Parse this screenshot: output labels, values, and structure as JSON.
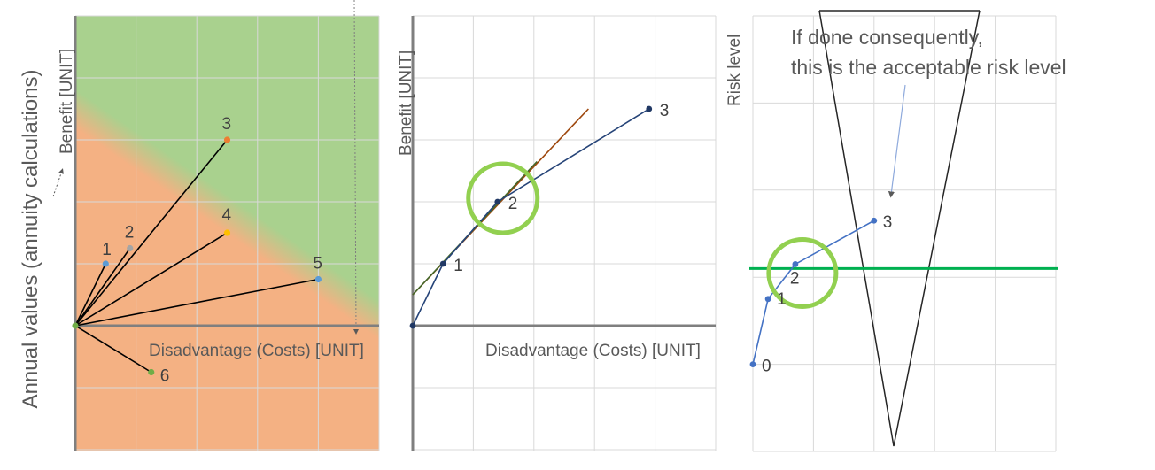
{
  "figure": {
    "side_label": "Annual values (annuity calculations)"
  },
  "chart_data": [
    {
      "type": "scatter",
      "panel": "left",
      "xlabel": "Disadvantage (Costs) [UNIT]",
      "ylabel": "Benefit [UNIT]",
      "xlim": [
        0,
        10
      ],
      "ylim": [
        -4,
        10
      ],
      "grid": true,
      "background": "diagonal gradient: green above the diagonal, orange below",
      "colors": {
        "good_region": "#a9d18e",
        "bad_region": "#f4b183",
        "line": "#000000"
      },
      "points": [
        {
          "label": "1",
          "x": 1.0,
          "y": 2.0,
          "color": "#5b9bd5"
        },
        {
          "label": "2",
          "x": 1.8,
          "y": 2.5,
          "color": "#a5a5a5"
        },
        {
          "label": "3",
          "x": 5.0,
          "y": 6.0,
          "color": "#ed7d31"
        },
        {
          "label": "4",
          "x": 5.0,
          "y": 3.0,
          "color": "#ffc000"
        },
        {
          "label": "5",
          "x": 8.0,
          "y": 1.5,
          "color": "#5b9bd5"
        },
        {
          "label": "6",
          "x": 2.5,
          "y": -1.5,
          "color": "#70ad47"
        }
      ],
      "origin": {
        "x": 0,
        "y": 0,
        "color": "#70ad47"
      }
    },
    {
      "type": "line",
      "panel": "middle",
      "xlabel": "Disadvantage (Costs) [UNIT]",
      "ylabel": "Benefit [UNIT]",
      "xlim": [
        0,
        10
      ],
      "ylim": [
        -4,
        10
      ],
      "grid": true,
      "colors": {
        "series": "#264478",
        "tangent_brown": "#9e480e",
        "tangent_green": "#43682b",
        "circle": "#92d050"
      },
      "points": [
        {
          "label": "",
          "x": 0.0,
          "y": 0.0
        },
        {
          "label": "1",
          "x": 1.0,
          "y": 2.0
        },
        {
          "label": "2",
          "x": 2.8,
          "y": 4.0
        },
        {
          "label": "3",
          "x": 7.8,
          "y": 7.0
        }
      ],
      "tangent_lines": [
        {
          "x": [
            0.0,
            5.8
          ],
          "y": [
            1.0,
            7.0
          ],
          "color": "#9e480e"
        },
        {
          "x": [
            0.0,
            4.1
          ],
          "y": [
            1.0,
            5.3
          ],
          "color": "#43682b"
        }
      ],
      "highlight": {
        "label": "2",
        "x": 2.8,
        "y": 4.0
      }
    },
    {
      "type": "line",
      "panel": "right",
      "xlabel": "",
      "ylabel": "Risk level",
      "xlim": [
        0,
        10
      ],
      "ylim": [
        0,
        10
      ],
      "grid": true,
      "colors": {
        "series": "#4472c4",
        "acceptable_line": "#00b050",
        "triangle": "#000000",
        "circle": "#92d050"
      },
      "points": [
        {
          "label": "0",
          "x": 0.0,
          "y": 8.0
        },
        {
          "label": "1",
          "x": 0.5,
          "y": 6.5
        },
        {
          "label": "2",
          "x": 1.4,
          "y": 5.7
        },
        {
          "label": "3",
          "x": 4.0,
          "y": 4.7
        }
      ],
      "acceptable_level": 5.8,
      "annotation": [
        "If done consequently,",
        "this is the acceptable risk level"
      ],
      "highlight": {
        "label": "2",
        "x": 1.4,
        "y": 5.7
      }
    }
  ]
}
